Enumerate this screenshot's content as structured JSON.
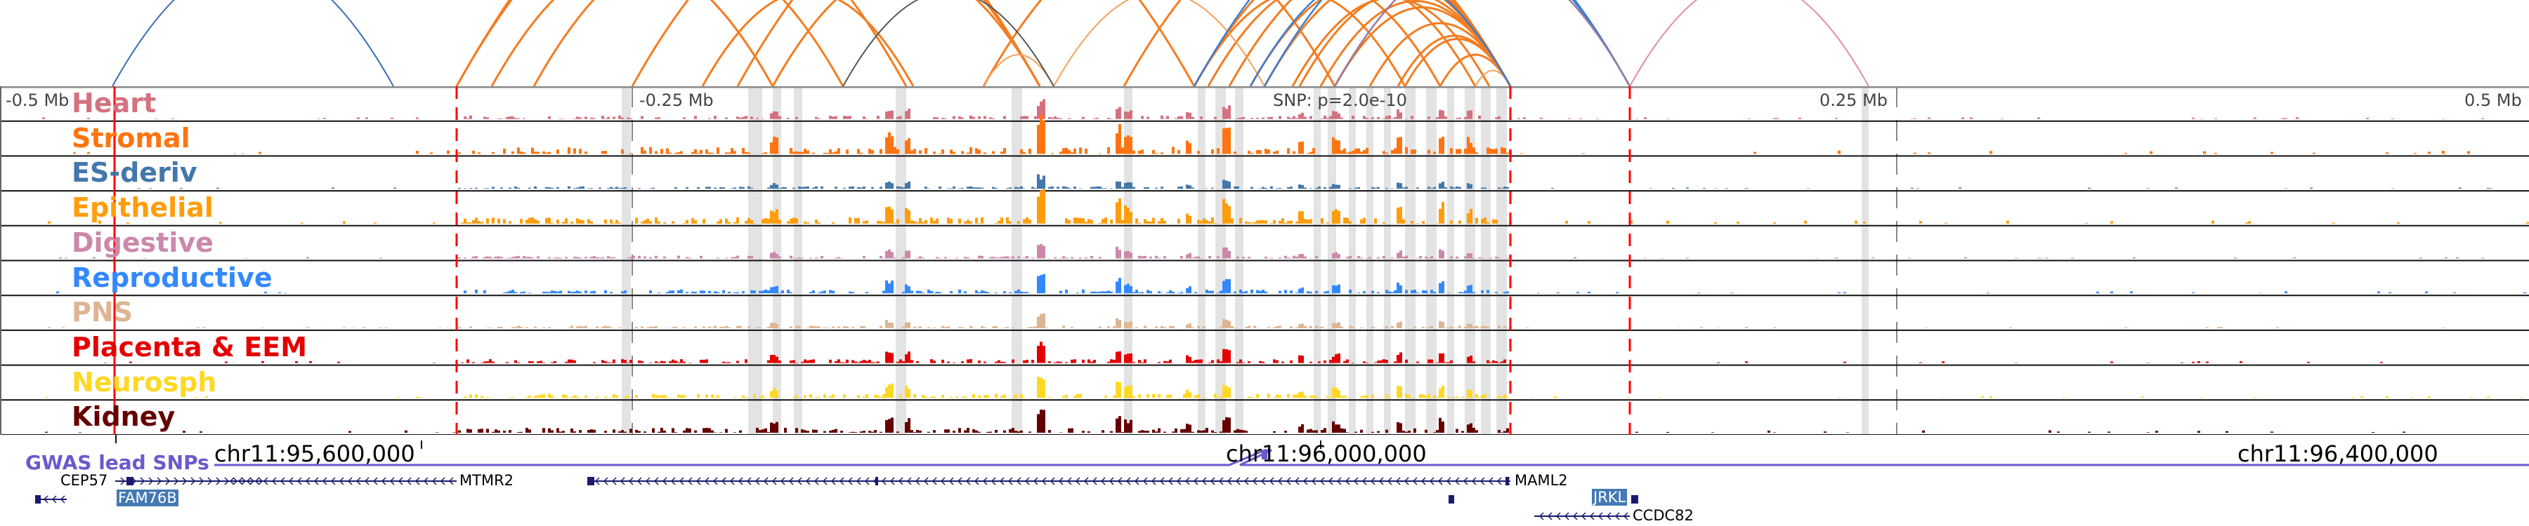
{
  "axis": {
    "left": "-0.5 Mb",
    "mid_left": "-0.25 Mb",
    "snp": "SNP: p=2.0e-10",
    "mid_right": "0.25 Mb",
    "right": "0.5 Mb"
  },
  "tracks": [
    {
      "label": "Heart",
      "color": "#d4717f"
    },
    {
      "label": "Stromal",
      "color": "#ff7410"
    },
    {
      "label": "ES-deriv",
      "color": "#4477aa"
    },
    {
      "label": "Epithelial",
      "color": "#ff9d0a"
    },
    {
      "label": "Digestive",
      "color": "#cc88aa"
    },
    {
      "label": "Reproductive",
      "color": "#3388ff"
    },
    {
      "label": "PNS",
      "color": "#deb592"
    },
    {
      "label": "Placenta & EEM",
      "color": "#e40000"
    },
    {
      "label": "Neurosph",
      "color": "#ffd824"
    },
    {
      "label": "Kidney",
      "color": "#660000"
    }
  ],
  "coordinates": [
    "chr11:95,600,000",
    "chr11:96,000,000",
    "chr11:96,400,000"
  ],
  "gwas_label": "GWAS lead SNPs",
  "genes": [
    "CEP57",
    "MTMR2",
    "FAM76B",
    "MAML2",
    "JRKL",
    "CCDC82"
  ],
  "colors": {
    "highlight": "#4479b3",
    "gene": "#1a1a6e",
    "gwas": "#6a5acd",
    "marker": "#ff0000"
  }
}
